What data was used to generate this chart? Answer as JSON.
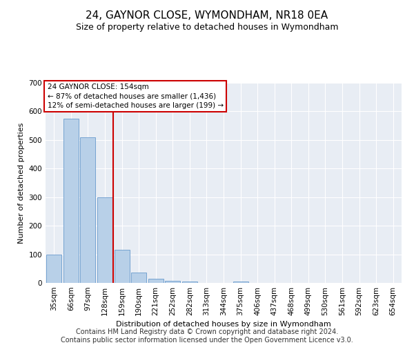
{
  "title": "24, GAYNOR CLOSE, WYMONDHAM, NR18 0EA",
  "subtitle": "Size of property relative to detached houses in Wymondham",
  "xlabel": "Distribution of detached houses by size in Wymondham",
  "ylabel": "Number of detached properties",
  "categories": [
    "35sqm",
    "66sqm",
    "97sqm",
    "128sqm",
    "159sqm",
    "190sqm",
    "221sqm",
    "252sqm",
    "282sqm",
    "313sqm",
    "344sqm",
    "375sqm",
    "406sqm",
    "437sqm",
    "468sqm",
    "499sqm",
    "530sqm",
    "561sqm",
    "592sqm",
    "623sqm",
    "654sqm"
  ],
  "values": [
    100,
    575,
    510,
    300,
    115,
    37,
    15,
    8,
    5,
    0,
    0,
    5,
    0,
    0,
    0,
    0,
    0,
    0,
    0,
    0,
    0
  ],
  "bar_color": "#b8d0e8",
  "bar_edge_color": "#6699cc",
  "vline_x": 4.5,
  "vline_color": "#cc0000",
  "annotation_text": "24 GAYNOR CLOSE: 154sqm\n← 87% of detached houses are smaller (1,436)\n12% of semi-detached houses are larger (199) →",
  "annotation_box_color": "#ffffff",
  "annotation_box_edge": "#cc0000",
  "ylim": [
    0,
    700
  ],
  "yticks": [
    0,
    100,
    200,
    300,
    400,
    500,
    600,
    700
  ],
  "footer": "Contains HM Land Registry data © Crown copyright and database right 2024.\nContains public sector information licensed under the Open Government Licence v3.0.",
  "bg_color": "#e8edf4",
  "grid_color": "#ffffff",
  "title_fontsize": 11,
  "subtitle_fontsize": 9,
  "footer_fontsize": 7,
  "axis_label_fontsize": 8,
  "tick_fontsize": 7.5,
  "ylabel_fontsize": 8
}
